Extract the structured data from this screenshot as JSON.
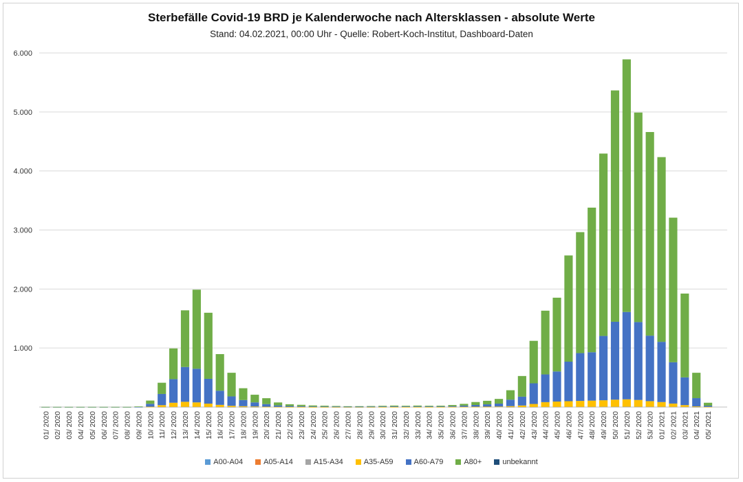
{
  "chart_data": {
    "type": "bar",
    "stacked": true,
    "title": "Sterbefälle Covid-19 BRD je Kalenderwoche nach Altersklassen - absolute Werte",
    "subtitle": "Stand: 04.02.2021, 00:00 Uhr - Quelle: Robert-Koch-Institut, Dashboard-Daten",
    "ylim": [
      0,
      6000
    ],
    "yticks": [
      "",
      "1.000",
      "2.000",
      "3.000",
      "4.000",
      "5.000",
      "6.000"
    ],
    "grid": true,
    "legend_position": "bottom",
    "categories": [
      "01/ 2020",
      "02/ 2020",
      "03/ 2020",
      "04/ 2020",
      "05/ 2020",
      "06/ 2020",
      "07/ 2020",
      "08/ 2020",
      "09/ 2020",
      "10/ 2020",
      "11/ 2020",
      "12/ 2020",
      "13/ 2020",
      "14/ 2020",
      "15/ 2020",
      "16/ 2020",
      "17/ 2020",
      "18/ 2020",
      "19/ 2020",
      "20/ 2020",
      "21/ 2020",
      "22/ 2020",
      "23/ 2020",
      "24/ 2020",
      "25/ 2020",
      "26/ 2020",
      "27/ 2020",
      "28/ 2020",
      "29/ 2020",
      "30/ 2020",
      "31/ 2020",
      "32/ 2020",
      "33/ 2020",
      "34/ 2020",
      "35/ 2020",
      "36/ 2020",
      "37/ 2020",
      "38/ 2020",
      "39/ 2020",
      "40/ 2020",
      "41/ 2020",
      "42/ 2020",
      "43/ 2020",
      "44/ 2020",
      "45/ 2020",
      "46/ 2020",
      "47/ 2020",
      "48/ 2020",
      "49/ 2020",
      "50/ 2020",
      "51/ 2020",
      "52/ 2020",
      "53/ 2020",
      "01/ 2021",
      "02/ 2021",
      "03/ 2021",
      "04/ 2021",
      "05/ 2021"
    ],
    "series": [
      {
        "name": "A00-A04",
        "color": "#5b9bd5",
        "values": [
          0,
          0,
          0,
          0,
          0,
          0,
          0,
          0,
          0,
          0,
          0,
          0,
          0,
          0,
          0,
          0,
          0,
          0,
          0,
          0,
          0,
          0,
          0,
          0,
          0,
          0,
          0,
          0,
          0,
          0,
          0,
          0,
          0,
          0,
          0,
          0,
          0,
          0,
          0,
          0,
          0,
          0,
          0,
          0,
          0,
          0,
          0,
          0,
          0,
          0,
          0,
          0,
          0,
          0,
          0,
          0,
          0,
          0
        ]
      },
      {
        "name": "A05-A14",
        "color": "#ed7d31",
        "values": [
          0,
          0,
          0,
          0,
          0,
          0,
          0,
          0,
          0,
          0,
          0,
          0,
          0,
          0,
          0,
          0,
          0,
          0,
          0,
          0,
          0,
          0,
          0,
          0,
          0,
          0,
          0,
          0,
          0,
          0,
          0,
          0,
          0,
          0,
          0,
          0,
          0,
          0,
          0,
          0,
          0,
          0,
          0,
          0,
          0,
          0,
          0,
          0,
          0,
          0,
          0,
          0,
          0,
          0,
          0,
          0,
          0,
          0
        ]
      },
      {
        "name": "A15-A34",
        "color": "#a5a5a5",
        "values": [
          0,
          0,
          0,
          0,
          0,
          0,
          0,
          0,
          0,
          0,
          2,
          3,
          4,
          4,
          3,
          2,
          1,
          1,
          1,
          0,
          0,
          0,
          0,
          0,
          0,
          0,
          0,
          0,
          0,
          0,
          0,
          0,
          0,
          0,
          0,
          0,
          0,
          0,
          0,
          0,
          1,
          1,
          2,
          3,
          3,
          4,
          4,
          4,
          5,
          5,
          6,
          5,
          5,
          5,
          4,
          3,
          1,
          0
        ]
      },
      {
        "name": "A35-A59",
        "color": "#ffc000",
        "values": [
          0,
          0,
          0,
          0,
          0,
          0,
          0,
          0,
          0,
          5,
          30,
          70,
          85,
          75,
          55,
          35,
          20,
          13,
          8,
          5,
          3,
          2,
          2,
          1,
          1,
          1,
          1,
          1,
          1,
          2,
          2,
          2,
          2,
          2,
          2,
          3,
          4,
          5,
          6,
          8,
          14,
          25,
          50,
          80,
          90,
          95,
          100,
          105,
          110,
          120,
          125,
          115,
          95,
          80,
          55,
          30,
          10,
          3
        ]
      },
      {
        "name": "A60-A79",
        "color": "#4472c4",
        "values": [
          1,
          1,
          1,
          1,
          1,
          1,
          1,
          1,
          3,
          50,
          190,
          400,
          590,
          570,
          420,
          240,
          160,
          105,
          70,
          45,
          25,
          15,
          12,
          8,
          7,
          6,
          5,
          5,
          6,
          7,
          9,
          8,
          8,
          8,
          7,
          12,
          20,
          30,
          40,
          50,
          110,
          150,
          350,
          470,
          510,
          670,
          810,
          820,
          1090,
          1320,
          1480,
          1320,
          1110,
          1020,
          700,
          470,
          140,
          20
        ]
      },
      {
        "name": "A80+",
        "color": "#70ad47",
        "values": [
          2,
          2,
          2,
          2,
          2,
          2,
          2,
          2,
          7,
          55,
          190,
          520,
          960,
          1340,
          1120,
          620,
          400,
          200,
          130,
          100,
          50,
          30,
          24,
          18,
          15,
          11,
          8,
          9,
          10,
          12,
          14,
          12,
          15,
          12,
          14,
          20,
          30,
          50,
          60,
          80,
          160,
          350,
          720,
          1080,
          1250,
          1800,
          2050,
          2450,
          3090,
          3920,
          4280,
          3550,
          3450,
          3130,
          2450,
          1420,
          430,
          50
        ]
      },
      {
        "name": "unbekannt",
        "color": "#1f4e79",
        "values": [
          0,
          0,
          0,
          0,
          0,
          0,
          0,
          0,
          0,
          0,
          0,
          0,
          0,
          0,
          0,
          0,
          0,
          0,
          0,
          0,
          0,
          0,
          0,
          0,
          0,
          0,
          0,
          0,
          0,
          0,
          0,
          0,
          0,
          0,
          0,
          0,
          0,
          0,
          0,
          0,
          0,
          0,
          0,
          0,
          0,
          0,
          0,
          0,
          0,
          0,
          0,
          0,
          0,
          0,
          0,
          0,
          0,
          0
        ]
      }
    ]
  }
}
